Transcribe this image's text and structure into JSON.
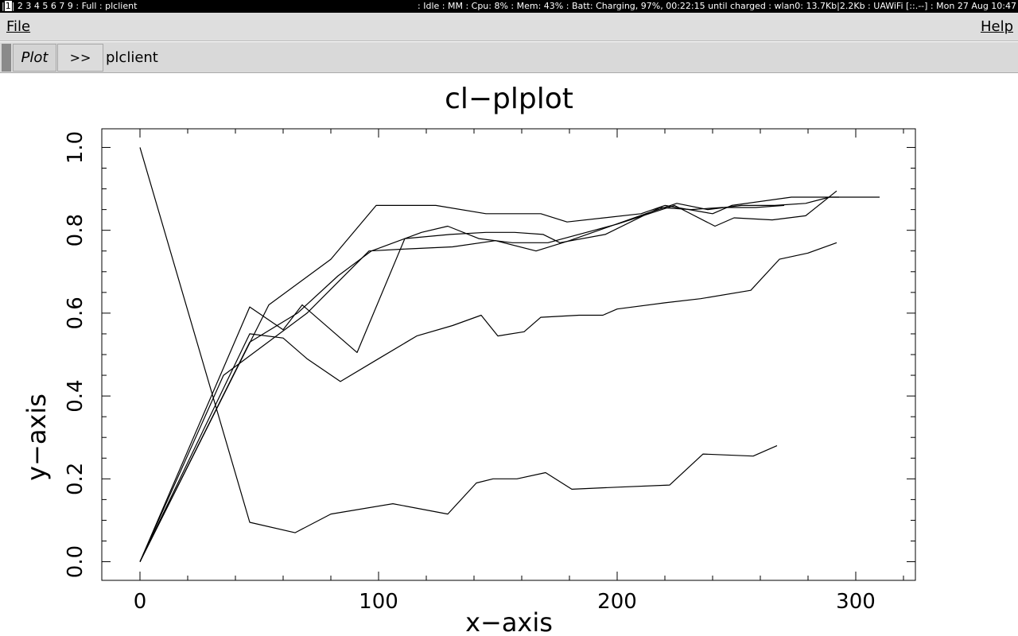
{
  "statusbar": {
    "workspace_current": "1",
    "workspace_others": "2 3 4 5 6 7 9",
    "mode": "Full",
    "window_title": "plclient",
    "system_status": ": Idle : MM : Cpu: 8% : Mem: 43% : Batt: Charging, 97%, 00:22:15 until charged : wlan0: 13.7Kb|2.2Kb : UAWiFi [::.--] : Mon 27 Aug 10:47"
  },
  "menubar": {
    "file_label": "File",
    "help_label": "Help"
  },
  "toolbar": {
    "tab_plot_label": "Plot",
    "more_label": ">>",
    "app_label": "plclient"
  },
  "chart_data": {
    "type": "line",
    "title": "cl−plplot",
    "xlabel": "x−axis",
    "ylabel": "y−axis",
    "xlim": [
      -16,
      325
    ],
    "ylim": [
      -0.045,
      1.045
    ],
    "xticks": [
      0,
      100,
      200,
      300
    ],
    "xtick_labels": [
      "0",
      "100",
      "200",
      "300"
    ],
    "yticks": [
      0.0,
      0.2,
      0.4,
      0.6,
      0.8,
      1.0
    ],
    "ytick_labels": [
      "0.0",
      "0.2",
      "0.4",
      "0.6",
      "0.8",
      "1.0"
    ],
    "grid": false,
    "series": [
      {
        "x": [
          0,
          46,
          65,
          80,
          106,
          129,
          141,
          148,
          158,
          170,
          181,
          200,
          222,
          236,
          257,
          267
        ],
        "y": [
          1.0,
          0.095,
          0.07,
          0.115,
          0.14,
          0.115,
          0.19,
          0.2,
          0.2,
          0.215,
          0.175,
          0.18,
          0.185,
          0.26,
          0.255,
          0.28
        ]
      },
      {
        "x": [
          0,
          46,
          60,
          70,
          84,
          100,
          116,
          131,
          143,
          150,
          161,
          168,
          184,
          194,
          200,
          220,
          235,
          256,
          268,
          280,
          292
        ],
        "y": [
          0.0,
          0.55,
          0.54,
          0.49,
          0.435,
          0.49,
          0.545,
          0.57,
          0.595,
          0.545,
          0.555,
          0.59,
          0.595,
          0.595,
          0.61,
          0.625,
          0.635,
          0.655,
          0.73,
          0.745,
          0.77
        ]
      },
      {
        "x": [
          0,
          46,
          60,
          68,
          91,
          111,
          130,
          145,
          157,
          169,
          176,
          195,
          218,
          231,
          244,
          258,
          270
        ],
        "y": [
          0.0,
          0.615,
          0.56,
          0.62,
          0.505,
          0.78,
          0.79,
          0.795,
          0.795,
          0.79,
          0.77,
          0.79,
          0.855,
          0.85,
          0.855,
          0.855,
          0.86
        ]
      },
      {
        "x": [
          0,
          54,
          80,
          99,
          124,
          145,
          158,
          168,
          179,
          210,
          220,
          240,
          248,
          273,
          284,
          293
        ],
        "y": [
          0.0,
          0.62,
          0.73,
          0.86,
          0.86,
          0.84,
          0.84,
          0.84,
          0.82,
          0.84,
          0.86,
          0.84,
          0.86,
          0.88,
          0.88,
          0.88
        ]
      },
      {
        "x": [
          0,
          35,
          70,
          96,
          112,
          131,
          149,
          166,
          180,
          212,
          225,
          238,
          252,
          266,
          279,
          289,
          310
        ],
        "y": [
          0.0,
          0.45,
          0.6,
          0.75,
          0.755,
          0.76,
          0.775,
          0.75,
          0.775,
          0.84,
          0.865,
          0.85,
          0.86,
          0.86,
          0.865,
          0.88,
          0.88
        ]
      },
      {
        "x": [
          0,
          46,
          56,
          66,
          83,
          97,
          118,
          129,
          142,
          156,
          171,
          200,
          224,
          241,
          249,
          265,
          279,
          292
        ],
        "y": [
          0.0,
          0.53,
          0.565,
          0.6,
          0.69,
          0.75,
          0.795,
          0.81,
          0.78,
          0.77,
          0.77,
          0.815,
          0.86,
          0.81,
          0.83,
          0.825,
          0.835,
          0.895
        ]
      }
    ]
  }
}
